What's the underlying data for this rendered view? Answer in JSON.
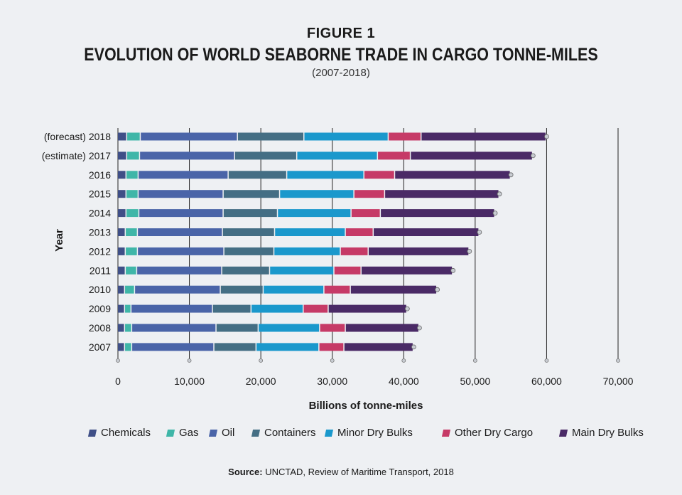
{
  "figure_label": "FIGURE 1",
  "source": {
    "label": "Source:",
    "text": "UNCTAD, Review of Maritime Transport, 2018"
  },
  "colors": {
    "Chemicals": "#3f4f87",
    "Gas": "#3fb6a8",
    "Oil": "#4a64a8",
    "Containers": "#446e84",
    "Minor Dry Bulks": "#1a98cc",
    "Other Dry Cargo": "#c63a67",
    "Main Dry Bulks": "#4a2a66"
  },
  "chart_data": {
    "type": "bar",
    "orientation": "horizontal",
    "stacked": true,
    "title": "EVOLUTION OF WORLD SEABORNE TRADE IN CARGO TONNE-MILES",
    "subtitle": "(2007-2018)",
    "xlabel": "Billions of tonne-miles",
    "ylabel": "Year",
    "xlim": [
      0,
      70000
    ],
    "xticks": [
      "0",
      "10,000",
      "20,000",
      "30,000",
      "40,000",
      "50,000",
      "60,000",
      "70,000"
    ],
    "grid": true,
    "legend_position": "bottom",
    "categories": [
      "2007",
      "2008",
      "2009",
      "2010",
      "2011",
      "2012",
      "2013",
      "2014",
      "2015",
      "2016",
      "(estimate) 2017",
      "(forecast) 2018"
    ],
    "series": [
      {
        "name": "Chemicals",
        "values": [
          1000,
          1000,
          1000,
          1000,
          1100,
          1100,
          1100,
          1200,
          1200,
          1200,
          1300,
          1300
        ]
      },
      {
        "name": "Gas",
        "values": [
          1000,
          1000,
          900,
          1400,
          1600,
          1700,
          1700,
          1800,
          1700,
          1700,
          1800,
          1900
        ]
      },
      {
        "name": "Oil",
        "values": [
          11500,
          11800,
          11400,
          12000,
          11900,
          12100,
          11900,
          11800,
          11900,
          12600,
          13300,
          13600
        ]
      },
      {
        "name": "Containers",
        "values": [
          5900,
          5900,
          5400,
          6000,
          6700,
          7000,
          7300,
          7600,
          7900,
          8200,
          8700,
          9300
        ]
      },
      {
        "name": "Minor Dry Bulks",
        "values": [
          8800,
          8600,
          7300,
          8500,
          9000,
          9300,
          9900,
          10300,
          10400,
          10800,
          11300,
          11800
        ]
      },
      {
        "name": "Other Dry Cargo",
        "values": [
          3500,
          3600,
          3500,
          3700,
          3800,
          3900,
          3900,
          4100,
          4300,
          4300,
          4600,
          4600
        ]
      },
      {
        "name": "Main Dry Bulks",
        "values": [
          9700,
          10300,
          11000,
          12100,
          12800,
          14100,
          14800,
          16000,
          16000,
          16200,
          17100,
          17500
        ]
      }
    ]
  }
}
